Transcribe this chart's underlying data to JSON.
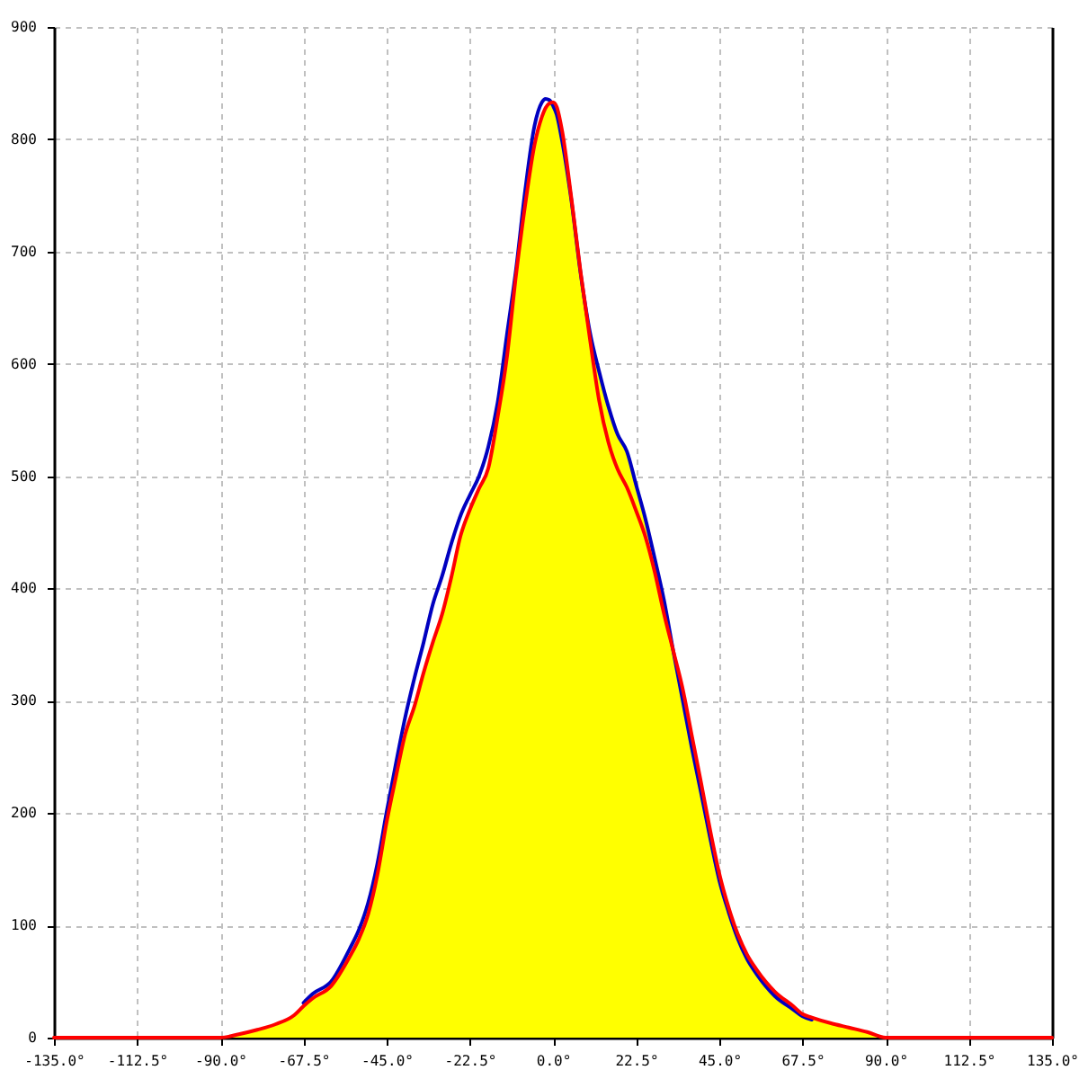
{
  "chart_data": {
    "type": "line",
    "x": [
      -135,
      -90,
      -85,
      -80,
      -75,
      -70,
      -67.5,
      -65,
      -60,
      -55,
      -52.5,
      -50,
      -47.5,
      -45,
      -42.5,
      -40,
      -37.5,
      -35,
      -32.5,
      -30,
      -27.5,
      -25,
      -22.5,
      -20,
      -17.5,
      -15,
      -12.5,
      -10,
      -7.5,
      -5,
      -3,
      -2,
      -1,
      0,
      1,
      2.5,
      5,
      7.5,
      10,
      12.5,
      15,
      17.5,
      20,
      22.5,
      25,
      27.5,
      30,
      32.5,
      35,
      37.5,
      40,
      42.5,
      45,
      47.5,
      50,
      52.5,
      55,
      57.5,
      60,
      65,
      67.5,
      70,
      75,
      80,
      85,
      90,
      135
    ],
    "series": [
      {
        "type": "area",
        "color": "#ffff00",
        "x": [
          -90,
          -85,
          -80,
          -75,
          -70,
          -67.5,
          -65,
          -60,
          -55,
          -52.5,
          -50,
          -47.5,
          -45,
          -42.5,
          -40,
          -37.5,
          -35,
          -32.5,
          -30,
          -27.5,
          -25,
          -22.5,
          -20,
          -17.5,
          -15,
          -12.5,
          -10,
          -7.5,
          -5,
          -3,
          -2,
          -1,
          0,
          1,
          2.5,
          5,
          7.5,
          10,
          12.5,
          15,
          17.5,
          20,
          22.5,
          25,
          27.5,
          30,
          32.5,
          35,
          37.5,
          40,
          42.5,
          45,
          47.5,
          50,
          52.5,
          55,
          57.5,
          60,
          65,
          67.5,
          70,
          75,
          80,
          85,
          90
        ],
        "values": [
          0,
          3,
          7,
          12,
          20,
          28,
          35,
          46,
          72,
          88,
          110,
          145,
          192,
          232,
          270,
          295,
          325,
          352,
          377,
          410,
          447,
          470,
          489,
          507,
          552,
          605,
          679,
          742,
          795,
          820,
          828,
          832,
          833,
          829,
          807,
          747,
          681,
          628,
          593,
          562,
          537,
          522,
          492,
          462,
          427,
          390,
          345,
          312,
          270,
          228,
          185,
          146,
          116,
          92,
          74,
          61,
          50,
          41,
          28,
          21,
          18,
          13,
          9,
          5,
          0
        ]
      },
      {
        "color": "#0000c0",
        "values": [
          null,
          null,
          null,
          null,
          null,
          null,
          31,
          39,
          50,
          79,
          96,
          120,
          155,
          201,
          244,
          285,
          320,
          352,
          386,
          411,
          440,
          465,
          483,
          500,
          526,
          565,
          625,
          684,
          755,
          812,
          833,
          836,
          835,
          830,
          822,
          798,
          745,
          680,
          628,
          593,
          562,
          537,
          522,
          492,
          462,
          427,
          390,
          345,
          302,
          259,
          219,
          178,
          140,
          112,
          88,
          70,
          57,
          46,
          37,
          25,
          19,
          16,
          null,
          null,
          null,
          null,
          null
        ]
      },
      {
        "color": "#ff0000",
        "values": [
          0,
          0,
          3,
          7,
          12,
          20,
          28,
          35,
          46,
          72,
          88,
          110,
          145,
          192,
          232,
          270,
          295,
          325,
          352,
          377,
          410,
          447,
          470,
          489,
          507,
          552,
          605,
          679,
          742,
          795,
          820,
          828,
          832,
          833,
          829,
          807,
          747,
          681,
          622,
          567,
          530,
          506,
          490,
          469,
          446,
          415,
          378,
          345,
          312,
          270,
          228,
          185,
          146,
          116,
          92,
          74,
          61,
          50,
          41,
          28,
          21,
          18,
          13,
          9,
          5,
          0,
          0
        ]
      }
    ],
    "xlim": [
      -135,
      135
    ],
    "xticks": [
      {
        "value": -135,
        "label": "-135.0°"
      },
      {
        "value": -112.5,
        "label": "-112.5°"
      },
      {
        "value": -90,
        "label": "-90.0°"
      },
      {
        "value": -67.5,
        "label": "-67.5°"
      },
      {
        "value": -45,
        "label": "-45.0°"
      },
      {
        "value": -22.5,
        "label": "-22.5°"
      },
      {
        "value": 0,
        "label": "0.0°"
      },
      {
        "value": 22.5,
        "label": "22.5°"
      },
      {
        "value": 45,
        "label": "45.0°"
      },
      {
        "value": 67.5,
        "label": "67.5°"
      },
      {
        "value": 90,
        "label": "90.0°"
      },
      {
        "value": 112.5,
        "label": "112.5°"
      },
      {
        "value": 135,
        "label": "135.0°"
      }
    ],
    "ylim": [
      0,
      900
    ],
    "yticks": [
      0,
      100,
      200,
      300,
      400,
      500,
      600,
      700,
      800,
      900
    ],
    "grid": true,
    "marker": "none",
    "line_style": "solid"
  }
}
